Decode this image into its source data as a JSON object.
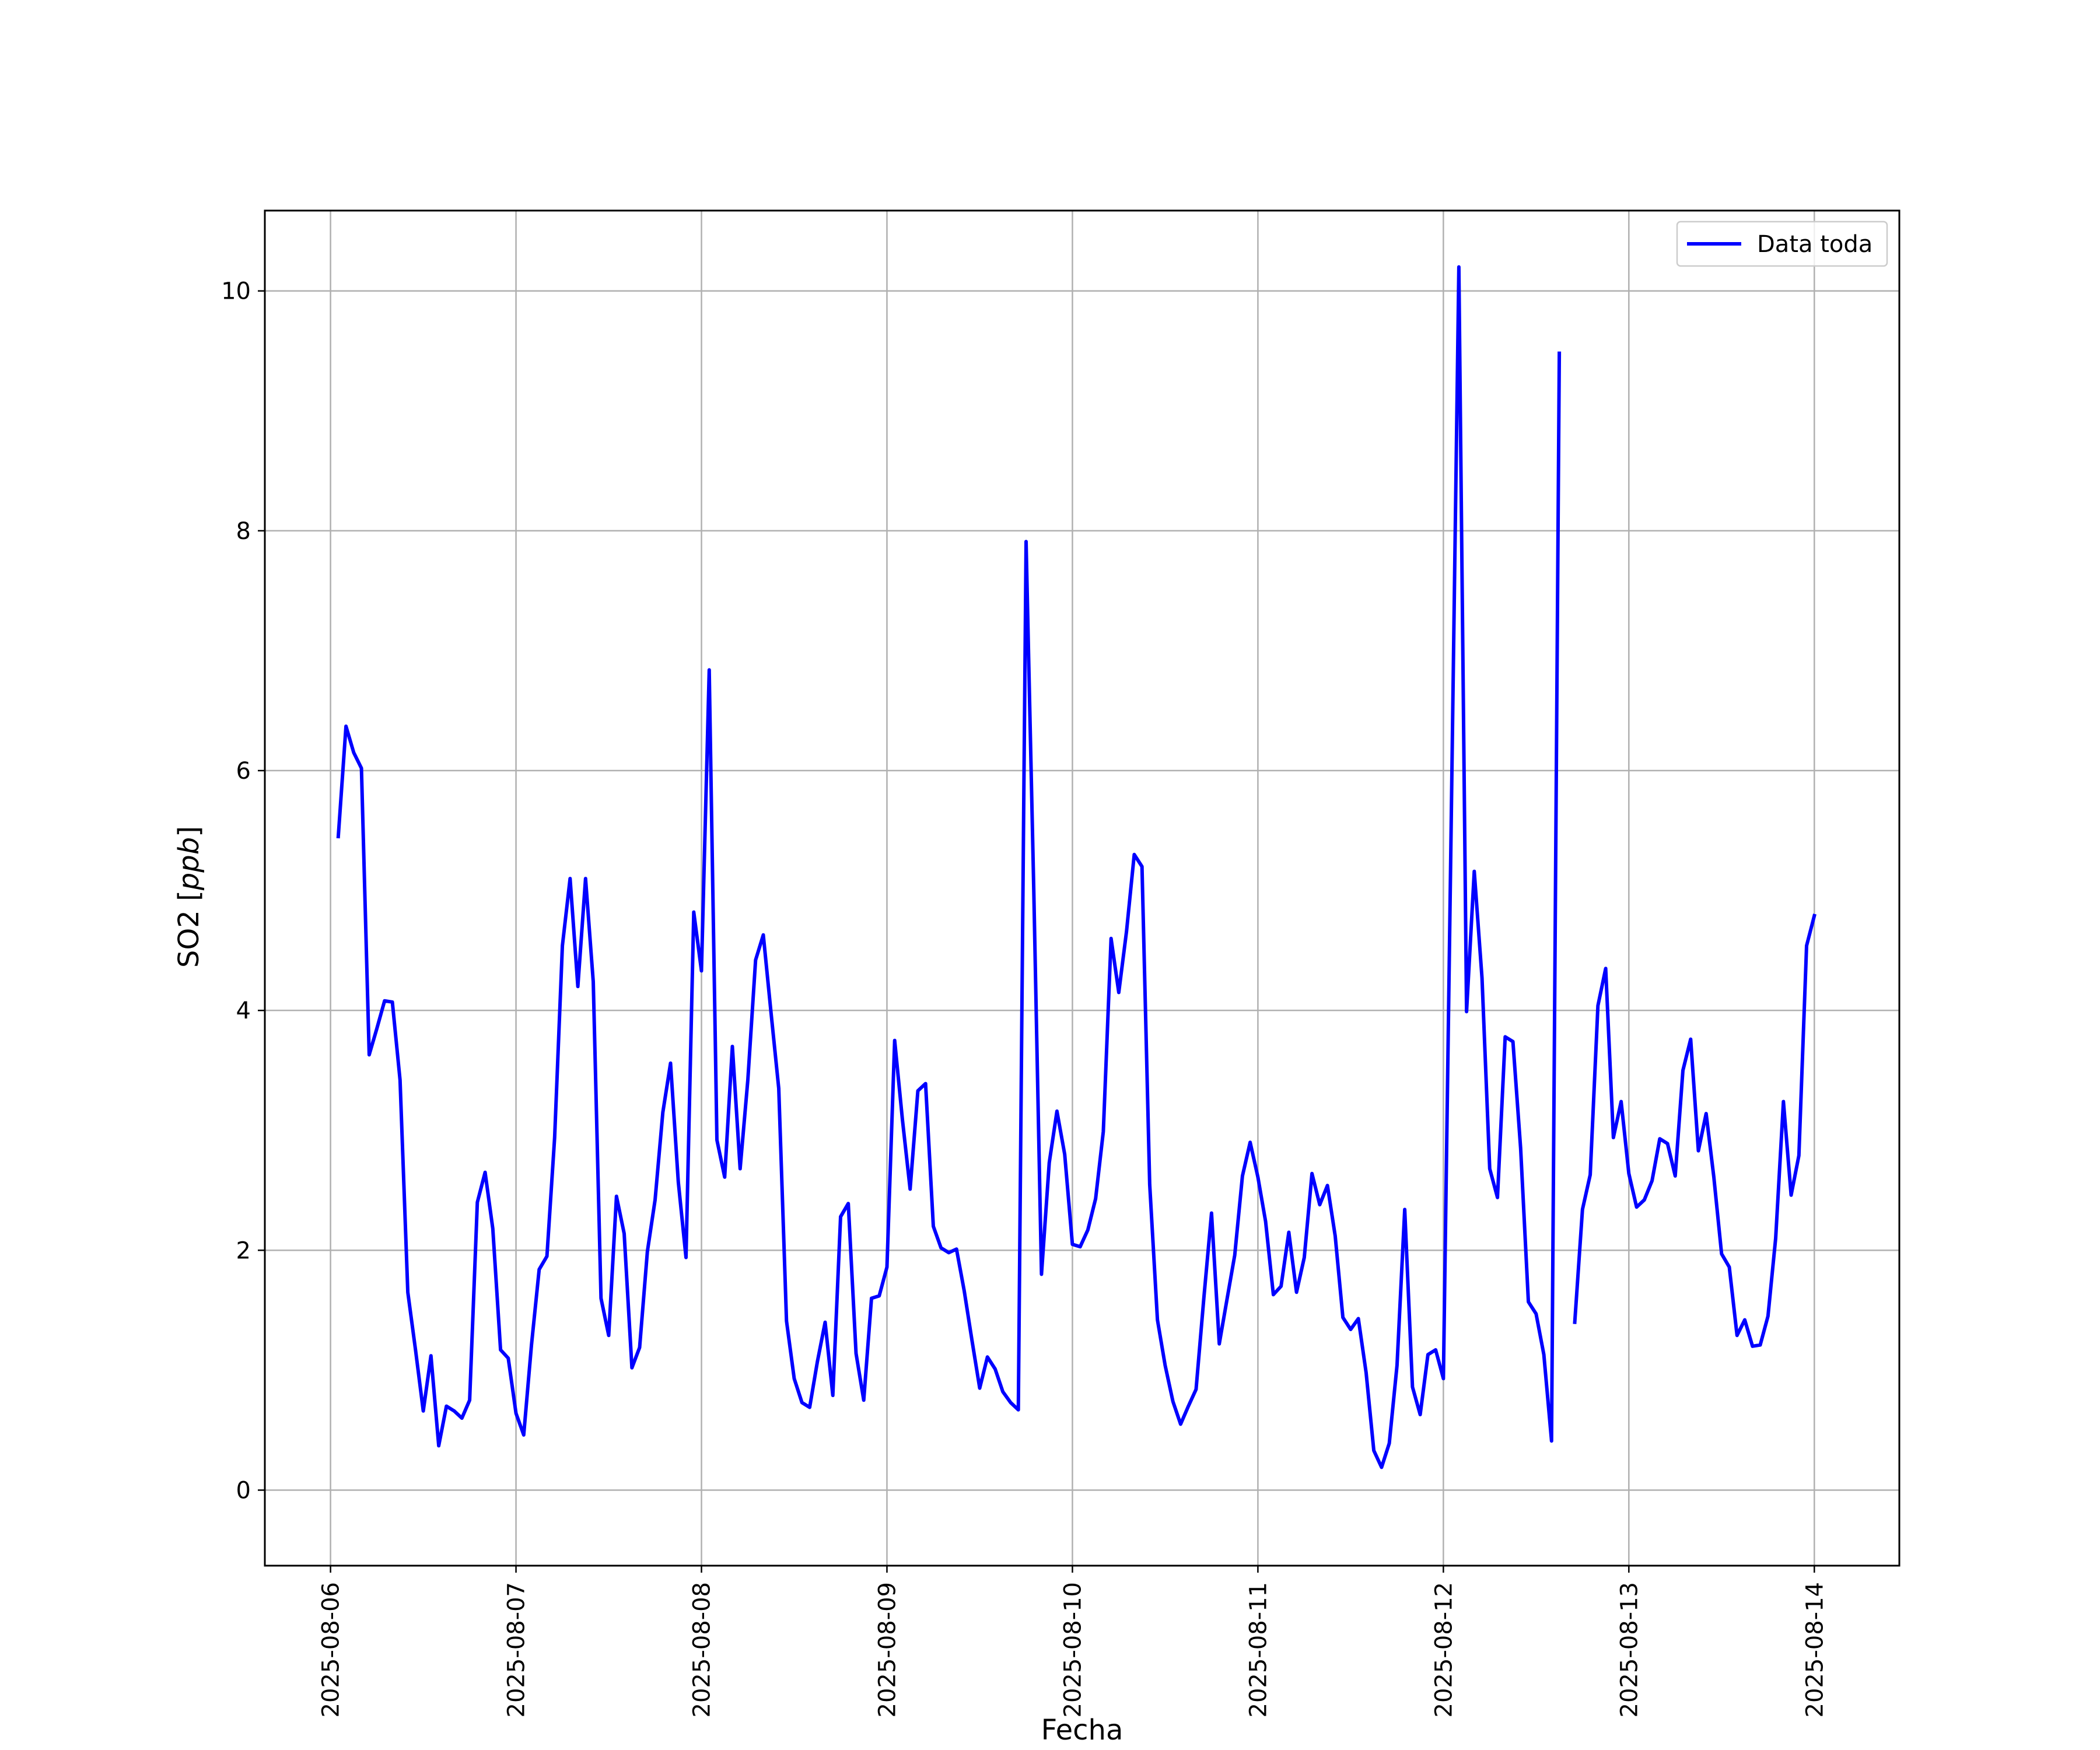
{
  "chart_data": {
    "type": "line",
    "title": "",
    "xlabel": "Fecha",
    "ylabel_plain": "SO2 [",
    "ylabel_italic": "ppb",
    "ylabel_close": "]",
    "x_tick_labels": [
      "2025-08-06",
      "2025-08-07",
      "2025-08-08",
      "2025-08-09",
      "2025-08-10",
      "2025-08-11",
      "2025-08-12",
      "2025-08-13",
      "2025-08-14"
    ],
    "y_tick_labels": [
      "0",
      "2",
      "4",
      "6",
      "8",
      "10"
    ],
    "y_ticks": [
      0,
      2,
      4,
      6,
      8,
      10
    ],
    "xlim": [
      "2025-08-05 15:30",
      "2025-08-14 11:00"
    ],
    "ylim": [
      -0.63,
      10.67
    ],
    "grid": true,
    "legend": {
      "position": "top-right",
      "entries": [
        "Data toda"
      ]
    },
    "colors": {
      "line": "#0000ff",
      "grid": "#b0b0b0",
      "axes": "#000000"
    },
    "series": [
      {
        "name": "Data toda",
        "x": [
          "2025-08-06 01:00",
          "2025-08-06 02:00",
          "2025-08-06 03:00",
          "2025-08-06 04:00",
          "2025-08-06 05:00",
          "2025-08-06 06:00",
          "2025-08-06 07:00",
          "2025-08-06 08:00",
          "2025-08-06 09:00",
          "2025-08-06 10:00",
          "2025-08-06 11:00",
          "2025-08-06 12:00",
          "2025-08-06 13:00",
          "2025-08-06 14:00",
          "2025-08-06 15:00",
          "2025-08-06 16:00",
          "2025-08-06 17:00",
          "2025-08-06 18:00",
          "2025-08-06 19:00",
          "2025-08-06 20:00",
          "2025-08-06 21:00",
          "2025-08-06 22:00",
          "2025-08-06 23:00",
          "2025-08-07 00:00",
          "2025-08-07 01:00",
          "2025-08-07 02:00",
          "2025-08-07 03:00",
          "2025-08-07 04:00",
          "2025-08-07 05:00",
          "2025-08-07 06:00",
          "2025-08-07 07:00",
          "2025-08-07 08:00",
          "2025-08-07 09:00",
          "2025-08-07 10:00",
          "2025-08-07 11:00",
          "2025-08-07 12:00",
          "2025-08-07 13:00",
          "2025-08-07 14:00",
          "2025-08-07 15:00",
          "2025-08-07 16:00",
          "2025-08-07 17:00",
          "2025-08-07 18:00",
          "2025-08-07 19:00",
          "2025-08-07 20:00",
          "2025-08-07 21:00",
          "2025-08-07 22:00",
          "2025-08-07 23:00",
          "2025-08-08 00:00",
          "2025-08-08 01:00",
          "2025-08-08 02:00",
          "2025-08-08 03:00",
          "2025-08-08 04:00",
          "2025-08-08 05:00",
          "2025-08-08 06:00",
          "2025-08-08 07:00",
          "2025-08-08 08:00",
          "2025-08-08 09:00",
          "2025-08-08 10:00",
          "2025-08-08 11:00",
          "2025-08-08 12:00",
          "2025-08-08 13:00",
          "2025-08-08 14:00",
          "2025-08-08 15:00",
          "2025-08-08 16:00",
          "2025-08-08 17:00",
          "2025-08-08 18:00",
          "2025-08-08 19:00",
          "2025-08-08 20:00",
          "2025-08-08 21:00",
          "2025-08-08 22:00",
          "2025-08-08 23:00",
          "2025-08-09 00:00",
          "2025-08-09 01:00",
          "2025-08-09 02:00",
          "2025-08-09 03:00",
          "2025-08-09 04:00",
          "2025-08-09 05:00",
          "2025-08-09 06:00",
          "2025-08-09 07:00",
          "2025-08-09 08:00",
          "2025-08-09 09:00",
          "2025-08-09 10:00",
          "2025-08-09 11:00",
          "2025-08-09 12:00",
          "2025-08-09 13:00",
          "2025-08-09 14:00",
          "2025-08-09 15:00",
          "2025-08-09 16:00",
          "2025-08-09 17:00",
          "2025-08-09 18:00",
          "2025-08-09 19:00",
          "2025-08-09 20:00",
          "2025-08-09 21:00",
          "2025-08-09 22:00",
          "2025-08-09 23:00",
          "2025-08-10 00:00",
          "2025-08-10 01:00",
          "2025-08-10 02:00",
          "2025-08-10 03:00",
          "2025-08-10 04:00",
          "2025-08-10 05:00",
          "2025-08-10 06:00",
          "2025-08-10 07:00",
          "2025-08-10 08:00",
          "2025-08-10 09:00",
          "2025-08-10 10:00",
          "2025-08-10 11:00",
          "2025-08-10 12:00",
          "2025-08-10 13:00",
          "2025-08-10 14:00",
          "2025-08-10 15:00",
          "2025-08-10 16:00",
          "2025-08-10 17:00",
          "2025-08-10 18:00",
          "2025-08-10 19:00",
          "2025-08-10 20:00",
          "2025-08-10 21:00",
          "2025-08-10 22:00",
          "2025-08-10 23:00",
          "2025-08-11 00:00",
          "2025-08-11 01:00",
          "2025-08-11 02:00",
          "2025-08-11 03:00",
          "2025-08-11 04:00",
          "2025-08-11 05:00",
          "2025-08-11 06:00",
          "2025-08-11 07:00",
          "2025-08-11 08:00",
          "2025-08-11 09:00",
          "2025-08-11 10:00",
          "2025-08-11 11:00",
          "2025-08-11 12:00",
          "2025-08-11 13:00",
          "2025-08-11 14:00",
          "2025-08-11 15:00",
          "2025-08-11 16:00",
          "2025-08-11 17:00",
          "2025-08-11 18:00",
          "2025-08-11 19:00",
          "2025-08-11 20:00",
          "2025-08-11 21:00",
          "2025-08-11 22:00",
          "2025-08-11 23:00",
          "2025-08-12 00:00",
          "2025-08-12 01:00",
          "2025-08-12 02:00",
          "2025-08-12 03:00",
          "2025-08-12 04:00",
          "2025-08-12 05:00",
          "2025-08-12 06:00",
          "2025-08-12 07:00",
          "2025-08-12 08:00",
          "2025-08-12 09:00",
          "2025-08-12 10:00",
          "2025-08-12 11:00",
          "2025-08-12 12:00",
          "2025-08-12 13:00",
          "2025-08-12 14:00",
          "2025-08-12 15:00",
          "2025-08-12 16:00",
          "2025-08-12 17:00",
          "2025-08-12 18:00",
          "2025-08-12 19:00",
          "2025-08-12 20:00",
          "2025-08-12 21:00",
          "2025-08-12 22:00",
          "2025-08-12 23:00",
          "2025-08-13 00:00",
          "2025-08-13 01:00",
          "2025-08-13 02:00",
          "2025-08-13 03:00",
          "2025-08-13 04:00",
          "2025-08-13 05:00",
          "2025-08-13 06:00",
          "2025-08-13 07:00",
          "2025-08-13 08:00",
          "2025-08-13 09:00",
          "2025-08-13 10:00",
          "2025-08-13 11:00",
          "2025-08-13 12:00",
          "2025-08-13 13:00",
          "2025-08-13 14:00",
          "2025-08-13 15:00",
          "2025-08-13 16:00",
          "2025-08-13 17:00",
          "2025-08-13 18:00",
          "2025-08-13 19:00",
          "2025-08-13 20:00",
          "2025-08-13 21:00",
          "2025-08-13 22:00",
          "2025-08-13 23:00",
          "2025-08-14 00:00"
        ],
        "y": [
          5.45,
          6.37,
          6.15,
          6.02,
          3.63,
          3.85,
          4.08,
          4.07,
          3.42,
          1.65,
          1.17,
          0.66,
          1.12,
          0.37,
          0.7,
          0.66,
          0.6,
          0.75,
          2.4,
          2.65,
          2.18,
          1.17,
          1.1,
          0.64,
          0.46,
          1.21,
          1.84,
          1.95,
          2.94,
          4.54,
          5.1,
          4.2,
          5.1,
          4.24,
          1.6,
          1.29,
          2.45,
          2.14,
          1.02,
          1.19,
          1.99,
          2.42,
          3.15,
          3.56,
          2.57,
          1.94,
          4.82,
          4.33,
          6.84,
          2.92,
          2.61,
          3.7,
          2.68,
          3.42,
          4.42,
          4.63,
          3.98,
          3.35,
          1.41,
          0.93,
          0.73,
          0.69,
          1.07,
          1.4,
          0.79,
          2.28,
          2.39,
          1.14,
          0.75,
          1.6,
          1.62,
          1.86,
          3.75,
          3.09,
          2.51,
          3.33,
          3.39,
          2.2,
          2.02,
          1.98,
          2.01,
          1.66,
          1.25,
          0.85,
          1.11,
          1.01,
          0.82,
          0.73,
          0.67,
          7.91,
          5.0,
          1.8,
          2.73,
          3.16,
          2.8,
          2.05,
          2.03,
          2.17,
          2.43,
          2.99,
          4.6,
          4.15,
          4.66,
          5.3,
          5.2,
          2.55,
          1.42,
          1.04,
          0.74,
          0.55,
          0.7,
          0.84,
          1.6,
          2.31,
          1.22,
          1.59,
          1.96,
          2.62,
          2.9,
          2.61,
          2.24,
          1.63,
          1.7,
          2.15,
          1.65,
          1.94,
          2.64,
          2.38,
          2.54,
          2.12,
          1.44,
          1.34,
          1.43,
          0.98,
          0.33,
          0.19,
          0.39,
          1.04,
          2.34,
          0.86,
          0.63,
          1.13,
          1.17,
          0.93,
          5.5,
          10.2,
          3.99,
          5.16,
          4.27,
          2.68,
          2.44,
          3.78,
          3.74,
          2.85,
          1.57,
          1.47,
          1.13,
          0.41,
          9.48,
          null,
          1.4,
          2.34,
          2.63,
          4.04,
          4.35,
          2.94,
          3.24,
          2.64,
          2.36,
          2.42,
          2.58,
          2.93,
          2.89,
          2.62,
          3.5,
          3.76,
          2.83,
          3.14,
          2.61,
          1.97,
          1.86,
          1.29,
          1.42,
          1.2,
          1.21,
          1.45,
          2.1,
          3.24,
          2.46,
          2.79,
          4.54,
          4.79
        ]
      }
    ]
  }
}
